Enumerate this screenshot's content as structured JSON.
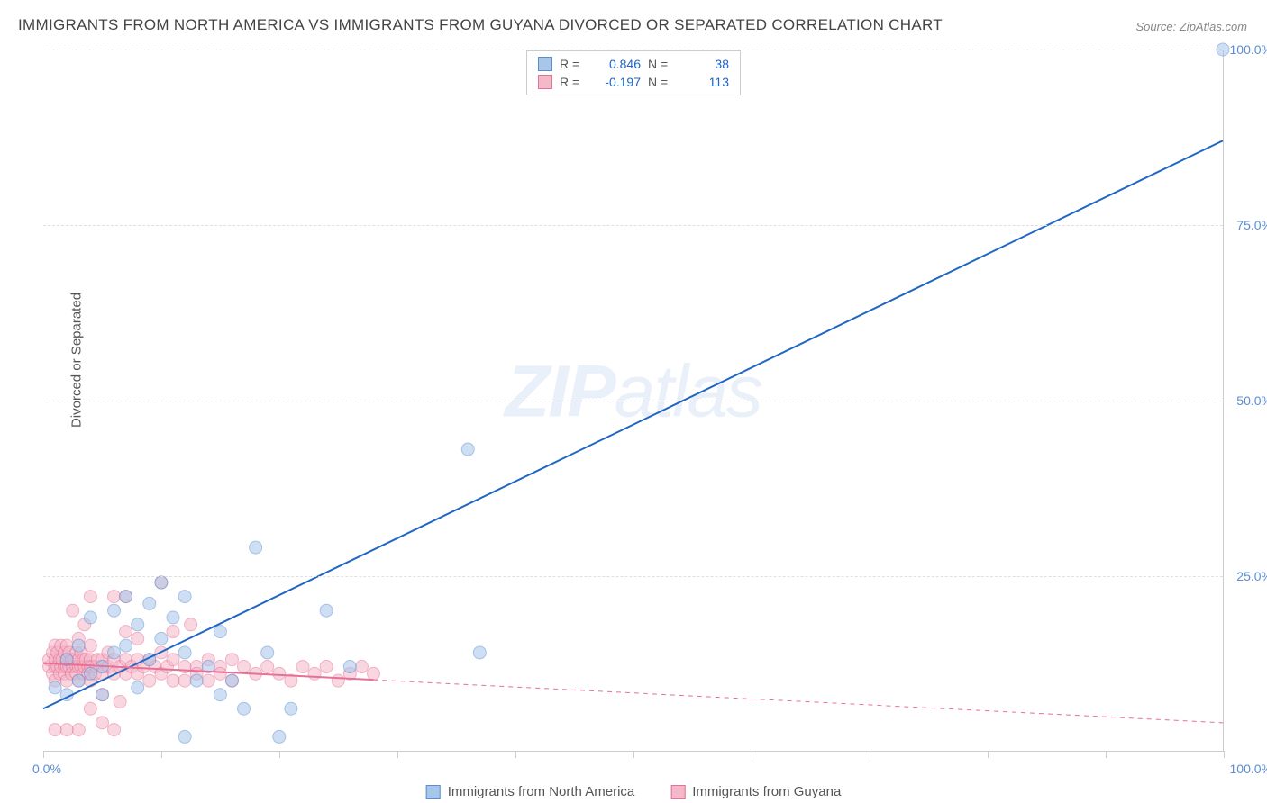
{
  "title": "IMMIGRANTS FROM NORTH AMERICA VS IMMIGRANTS FROM GUYANA DIVORCED OR SEPARATED CORRELATION CHART",
  "source": "Source: ZipAtlas.com",
  "ylabel": "Divorced or Separated",
  "watermark_bold": "ZIP",
  "watermark_rest": "atlas",
  "chart": {
    "type": "scatter-with-regression",
    "xlim": [
      0,
      100
    ],
    "ylim": [
      0,
      100
    ],
    "yticks": [
      25,
      50,
      75,
      100
    ],
    "ytick_labels": [
      "25.0%",
      "50.0%",
      "75.0%",
      "100.0%"
    ],
    "xtick_left": "0.0%",
    "xtick_right": "100.0%",
    "xtick_positions": [
      0,
      10,
      20,
      30,
      40,
      50,
      60,
      70,
      80,
      90,
      100
    ],
    "grid_color": "#e0e0e0",
    "axis_color": "#cccccc",
    "background_color": "#ffffff",
    "marker_radius": 7,
    "marker_opacity": 0.55,
    "line_width": 2,
    "series": [
      {
        "name": "Immigrants from North America",
        "color_fill": "#a8c5ea",
        "color_stroke": "#5b8dd6",
        "line_color": "#2066c4",
        "r": 0.846,
        "n": 38,
        "regression": {
          "x1": 0,
          "y1": 6,
          "x2": 100,
          "y2": 87,
          "solid_to_x": 100
        },
        "points": [
          [
            1,
            9
          ],
          [
            2,
            8
          ],
          [
            2,
            13
          ],
          [
            3,
            10
          ],
          [
            3,
            15
          ],
          [
            4,
            11
          ],
          [
            4,
            19
          ],
          [
            5,
            12
          ],
          [
            5,
            8
          ],
          [
            6,
            20
          ],
          [
            6,
            14
          ],
          [
            7,
            15
          ],
          [
            7,
            22
          ],
          [
            8,
            9
          ],
          [
            8,
            18
          ],
          [
            9,
            21
          ],
          [
            9,
            13
          ],
          [
            10,
            24
          ],
          [
            10,
            16
          ],
          [
            11,
            19
          ],
          [
            12,
            22
          ],
          [
            12,
            14
          ],
          [
            13,
            10
          ],
          [
            14,
            12
          ],
          [
            15,
            17
          ],
          [
            15,
            8
          ],
          [
            16,
            10
          ],
          [
            17,
            6
          ],
          [
            18,
            29
          ],
          [
            19,
            14
          ],
          [
            20,
            2
          ],
          [
            21,
            6
          ],
          [
            24,
            20
          ],
          [
            26,
            12
          ],
          [
            36,
            43
          ],
          [
            37,
            14
          ],
          [
            12,
            2
          ],
          [
            100,
            100
          ]
        ]
      },
      {
        "name": "Immigrants from Guyana",
        "color_fill": "#f4b8c9",
        "color_stroke": "#e86f95",
        "line_color": "#e86f95",
        "r": -0.197,
        "n": 113,
        "regression": {
          "x1": 0,
          "y1": 12.5,
          "x2": 100,
          "y2": 4,
          "solid_to_x": 28
        },
        "points": [
          [
            0.5,
            12
          ],
          [
            0.5,
            13
          ],
          [
            0.8,
            11
          ],
          [
            0.8,
            14
          ],
          [
            1,
            12
          ],
          [
            1,
            13
          ],
          [
            1,
            10
          ],
          [
            1,
            15
          ],
          [
            1.2,
            12
          ],
          [
            1.2,
            14
          ],
          [
            1.4,
            11
          ],
          [
            1.4,
            13
          ],
          [
            1.5,
            12
          ],
          [
            1.5,
            15
          ],
          [
            1.6,
            13
          ],
          [
            1.8,
            12
          ],
          [
            1.8,
            11
          ],
          [
            1.8,
            14
          ],
          [
            2,
            12
          ],
          [
            2,
            13
          ],
          [
            2,
            10
          ],
          [
            2,
            15
          ],
          [
            2.2,
            12
          ],
          [
            2.2,
            14
          ],
          [
            2.4,
            11
          ],
          [
            2.4,
            13
          ],
          [
            2.5,
            20
          ],
          [
            2.5,
            12
          ],
          [
            2.6,
            13
          ],
          [
            2.8,
            12
          ],
          [
            2.8,
            11
          ],
          [
            2.8,
            14
          ],
          [
            3,
            12
          ],
          [
            3,
            13
          ],
          [
            3,
            10
          ],
          [
            3,
            16
          ],
          [
            3.2,
            12
          ],
          [
            3.2,
            14
          ],
          [
            3.4,
            11
          ],
          [
            3.4,
            13
          ],
          [
            3.5,
            12
          ],
          [
            3.5,
            18
          ],
          [
            3.6,
            13
          ],
          [
            3.8,
            12
          ],
          [
            3.8,
            11
          ],
          [
            4,
            12
          ],
          [
            4,
            13
          ],
          [
            4,
            10
          ],
          [
            4,
            15
          ],
          [
            4,
            6
          ],
          [
            4.2,
            12
          ],
          [
            4.4,
            11
          ],
          [
            4.5,
            12
          ],
          [
            4.6,
            13
          ],
          [
            5,
            12
          ],
          [
            5,
            11
          ],
          [
            5,
            13
          ],
          [
            5,
            8
          ],
          [
            5,
            4
          ],
          [
            5.5,
            12
          ],
          [
            5.5,
            14
          ],
          [
            6,
            11
          ],
          [
            6,
            13
          ],
          [
            6,
            3
          ],
          [
            6.5,
            12
          ],
          [
            6.5,
            7
          ],
          [
            7,
            13
          ],
          [
            7,
            11
          ],
          [
            7,
            17
          ],
          [
            7.5,
            12
          ],
          [
            8,
            11
          ],
          [
            8,
            13
          ],
          [
            8,
            16
          ],
          [
            8.5,
            12
          ],
          [
            9,
            10
          ],
          [
            9,
            13
          ],
          [
            9.5,
            12
          ],
          [
            10,
            11
          ],
          [
            10,
            14
          ],
          [
            10.5,
            12
          ],
          [
            11,
            13
          ],
          [
            11,
            10
          ],
          [
            11,
            17
          ],
          [
            12,
            12
          ],
          [
            12,
            10
          ],
          [
            12.5,
            18
          ],
          [
            13,
            12
          ],
          [
            13,
            11
          ],
          [
            14,
            13
          ],
          [
            14,
            10
          ],
          [
            15,
            12
          ],
          [
            15,
            11
          ],
          [
            16,
            13
          ],
          [
            16,
            10
          ],
          [
            17,
            12
          ],
          [
            18,
            11
          ],
          [
            19,
            12
          ],
          [
            20,
            11
          ],
          [
            21,
            10
          ],
          [
            22,
            12
          ],
          [
            23,
            11
          ],
          [
            24,
            12
          ],
          [
            25,
            10
          ],
          [
            26,
            11
          ],
          [
            27,
            12
          ],
          [
            28,
            11
          ],
          [
            10,
            24
          ],
          [
            6,
            22
          ],
          [
            3,
            3
          ],
          [
            2,
            3
          ],
          [
            1,
            3
          ],
          [
            4,
            22
          ],
          [
            7,
            22
          ]
        ]
      }
    ]
  },
  "legend_top": {
    "r_label": "R =",
    "n_label": "N =",
    "rows": [
      {
        "swatch_fill": "#a8c5ea",
        "swatch_stroke": "#5b8dd6",
        "r": "0.846",
        "n": "38"
      },
      {
        "swatch_fill": "#f4b8c9",
        "swatch_stroke": "#e86f95",
        "r": "-0.197",
        "n": "113"
      }
    ]
  },
  "legend_bottom": {
    "items": [
      {
        "swatch_fill": "#a8c5ea",
        "swatch_stroke": "#5b8dd6",
        "label": "Immigrants from North America"
      },
      {
        "swatch_fill": "#f4b8c9",
        "swatch_stroke": "#e86f95",
        "label": "Immigrants from Guyana"
      }
    ]
  }
}
